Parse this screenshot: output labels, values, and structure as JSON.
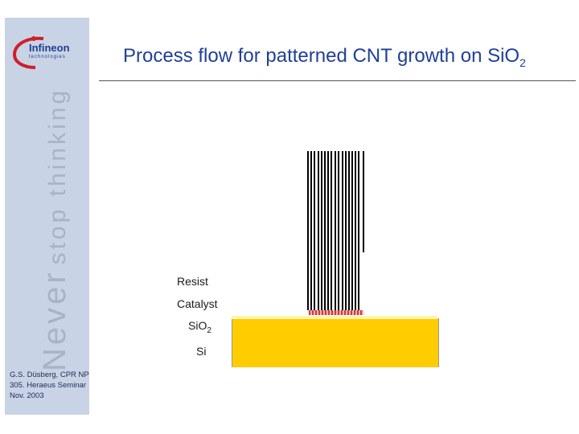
{
  "logo": {
    "name": "Infineon",
    "sub": "technologies"
  },
  "slogan": {
    "line1": "Never",
    "line2": "stop thinking"
  },
  "author": {
    "line1": "G.S. Düsberg, CPR NP",
    "line2": "305. Heraeus Seminar",
    "line3": "Nov. 2003"
  },
  "title": {
    "main": "Process flow for patterned CNT growth on SiO",
    "sub": "2"
  },
  "labels": {
    "resist": "Resist",
    "catalyst": "Catalyst",
    "sio2_main": "SiO",
    "sio2_sub": "2",
    "si": "Si"
  },
  "colors": {
    "si": "#ffcc00",
    "catalyst": "#d23a3a",
    "title": "#1f3f99",
    "sidebar": "#c9d3e6"
  }
}
